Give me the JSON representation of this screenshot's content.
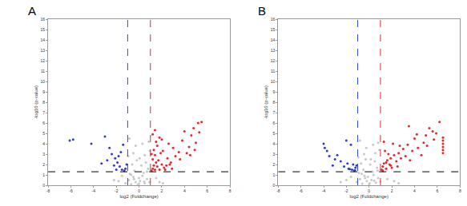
{
  "chart_data": [
    {
      "type": "scatter",
      "title": "A",
      "x_label": "log2 (Foldchange)",
      "y_label": "-log10 (p-value)",
      "xlim": [
        -8,
        8
      ],
      "xticks": [
        -8,
        -6,
        -4,
        -2,
        0,
        2,
        4,
        6,
        8
      ],
      "ylim": [
        0,
        16
      ],
      "yticks": [
        0,
        1,
        2,
        3,
        4,
        5,
        6,
        7,
        8,
        9,
        10,
        11,
        12,
        13,
        14,
        15,
        16
      ],
      "grid": false,
      "marker": "circle",
      "series": [
        {
          "color": "#c8c8c8",
          "x": [
            -1.2,
            -0.9,
            -0.7,
            -0.5,
            -0.3,
            -0.1,
            0.1,
            0.3,
            0.5,
            0.7,
            0.9,
            -0.8,
            -0.4,
            0,
            0.4,
            0.8,
            -0.6,
            -0.2,
            0.2,
            0.6,
            -0.95,
            -0.5,
            0.05,
            0.5,
            0.95,
            -0.3,
            0.3,
            -0.7,
            0.7,
            0,
            -1.8,
            -1.5,
            1.5,
            1.8,
            -2.2,
            2.1,
            -0.85,
            0.85,
            -0.45,
            0.45
          ],
          "values": [
            0.2,
            0.5,
            0.1,
            0.8,
            0.3,
            0.05,
            0.4,
            0.9,
            0.2,
            0.6,
            0.3,
            1.1,
            1.4,
            0.7,
            1.2,
            1.6,
            2.0,
            2.4,
            1.9,
            2.2,
            2.8,
            3.1,
            2.6,
            2.9,
            3.3,
            3.8,
            4.0,
            1.0,
            1.3,
            0.15,
            0.4,
            0.9,
            0.7,
            0.3,
            0.5,
            0.2,
            4.5,
            4.2,
            0.6,
            0.35
          ]
        },
        {
          "color": "#e8262a",
          "x": [
            1.1,
            1.2,
            1.3,
            1.4,
            1.5,
            1.6,
            1.8,
            2.0,
            1.2,
            1.4,
            1.7,
            1.9,
            2.2,
            2.5,
            1.3,
            1.6,
            2.1,
            2.4,
            2.8,
            3.0,
            1.5,
            2.0,
            2.6,
            3.2,
            3.5,
            1.1,
            1.8,
            2.3,
            3.8,
            4.0,
            4.2,
            4.4,
            4.6,
            4.8,
            5.0,
            5.2,
            5.5,
            4.5,
            4.9,
            5.3,
            3.6,
            2.9,
            1.4,
            1.2,
            2.7
          ],
          "values": [
            1.4,
            1.6,
            1.9,
            1.5,
            2.2,
            1.8,
            1.5,
            2.0,
            2.5,
            2.9,
            2.4,
            3.1,
            1.7,
            2.6,
            3.4,
            3.8,
            3.3,
            1.9,
            2.2,
            3.6,
            4.2,
            4.4,
            4.0,
            2.8,
            3.2,
            3.0,
            4.6,
            1.5,
            4.3,
            5.2,
            3.1,
            3.7,
            4.8,
            5.5,
            4.1,
            6.0,
            6.1,
            2.9,
            3.4,
            5.1,
            2.5,
            1.6,
            5.3,
            4.9,
            2.0
          ]
        },
        {
          "color": "#2b3fc4",
          "x": [
            -6.1,
            -5.8,
            -4.2,
            -3.0,
            -2.6,
            -2.4,
            -2.1,
            -1.9,
            -1.7,
            -1.5,
            -1.3,
            -1.2,
            -1.1,
            -2.8,
            -2.2,
            -1.6,
            -1.4,
            -3.3,
            -2.0,
            -1.8
          ],
          "values": [
            4.3,
            4.4,
            4.0,
            4.7,
            3.6,
            3.0,
            2.6,
            2.2,
            1.8,
            1.5,
            1.4,
            1.6,
            2.0,
            2.4,
            1.9,
            3.2,
            3.9,
            2.1,
            1.5,
            2.8
          ]
        }
      ],
      "thresholds": [
        {
          "axis": "x",
          "value": -1,
          "color": "#3344dd",
          "line_style": "dash"
        },
        {
          "axis": "x",
          "value": 1,
          "color": "#e8262a",
          "line_style": "dash"
        },
        {
          "axis": "y",
          "value": 1.3,
          "color": "#000000",
          "line_style": "dash"
        }
      ]
    },
    {
      "type": "scatter",
      "title": "B",
      "x_label": "log2 (Foldchange)",
      "y_label": "-log10 (p-value)",
      "xlim": [
        -8,
        8
      ],
      "xticks": [
        -8,
        -6,
        -4,
        -2,
        0,
        2,
        4,
        6,
        8
      ],
      "ylim": [
        0,
        16
      ],
      "yticks": [
        0,
        1,
        2,
        3,
        4,
        5,
        6,
        7,
        8,
        9,
        10,
        11,
        12,
        13,
        14,
        15,
        16
      ],
      "grid": false,
      "marker": "circle",
      "series": [
        {
          "color": "#c8c8c8",
          "x": [
            -1.1,
            -0.8,
            -0.6,
            -0.4,
            -0.2,
            0,
            0.2,
            0.4,
            0.6,
            0.8,
            1.0,
            -0.9,
            -0.5,
            -0.1,
            0.3,
            0.7,
            -0.7,
            -0.3,
            0.1,
            0.5,
            -0.95,
            -0.45,
            0.15,
            0.55,
            0.9,
            -0.25,
            0.35,
            -0.65,
            0.75,
            0.05,
            -2.0,
            -1.6,
            1.6,
            2.2,
            -2.5,
            2.6,
            -0.8,
            0.8,
            -0.35,
            0.45
          ],
          "values": [
            0.3,
            0.6,
            0.15,
            0.9,
            0.4,
            0.1,
            0.5,
            1.0,
            0.25,
            0.7,
            0.35,
            1.2,
            1.5,
            0.8,
            1.3,
            1.7,
            2.1,
            2.5,
            2.0,
            2.3,
            2.7,
            3.0,
            2.5,
            3.1,
            3.4,
            3.6,
            3.9,
            1.1,
            1.4,
            0.2,
            0.5,
            0.8,
            0.6,
            0.4,
            0.3,
            0.2,
            4.3,
            4.1,
            0.7,
            0.45
          ]
        },
        {
          "color": "#e8262a",
          "x": [
            1.1,
            1.2,
            1.3,
            1.5,
            1.6,
            1.8,
            2.0,
            2.2,
            1.4,
            1.7,
            1.9,
            2.4,
            2.6,
            2.8,
            3.0,
            3.2,
            1.3,
            2.1,
            2.5,
            3.4,
            3.6,
            3.8,
            4.0,
            4.3,
            4.6,
            4.8,
            5.0,
            5.3,
            5.6,
            5.9,
            6.2,
            6.5,
            6.5,
            6.5,
            6.5,
            6.5,
            6.5,
            1.2,
            1.9,
            2.7,
            3.5,
            4.2,
            5.1,
            5.7,
            1.5
          ],
          "values": [
            1.5,
            1.8,
            2.1,
            1.6,
            2.4,
            2.0,
            1.7,
            2.9,
            3.3,
            3.0,
            1.9,
            2.3,
            3.1,
            2.6,
            3.5,
            2.8,
            4.2,
            4.0,
            1.8,
            3.9,
            2.4,
            3.3,
            4.5,
            3.6,
            2.9,
            4.1,
            4.8,
            5.5,
            5.2,
            5.0,
            6.1,
            3.4,
            3.7,
            4.0,
            4.3,
            4.6,
            3.1,
            1.4,
            2.6,
            3.8,
            5.7,
            4.9,
            3.8,
            4.4,
            2.2
          ]
        },
        {
          "color": "#2b3fc4",
          "x": [
            -4.0,
            -3.9,
            -3.7,
            -3.5,
            -2.0,
            -1.6,
            -2.5,
            -3.0,
            -2.2,
            -1.8,
            -1.5,
            -1.3,
            -1.2,
            -1.1,
            -1.4,
            -2.8,
            -1.9,
            -1.25,
            -1.7,
            -3.2
          ],
          "values": [
            4.0,
            3.6,
            3.3,
            2.8,
            4.3,
            3.9,
            2.3,
            2.5,
            1.8,
            1.6,
            1.5,
            1.4,
            1.7,
            1.9,
            2.0,
            2.9,
            2.1,
            1.45,
            1.55,
            1.9
          ]
        }
      ],
      "thresholds": [
        {
          "axis": "x",
          "value": -1,
          "color": "#3344dd",
          "line_style": "dash"
        },
        {
          "axis": "x",
          "value": 1,
          "color": "#e8262a",
          "line_style": "dash"
        },
        {
          "axis": "y",
          "value": 1.3,
          "color": "#000000",
          "line_style": "dash"
        }
      ]
    }
  ]
}
